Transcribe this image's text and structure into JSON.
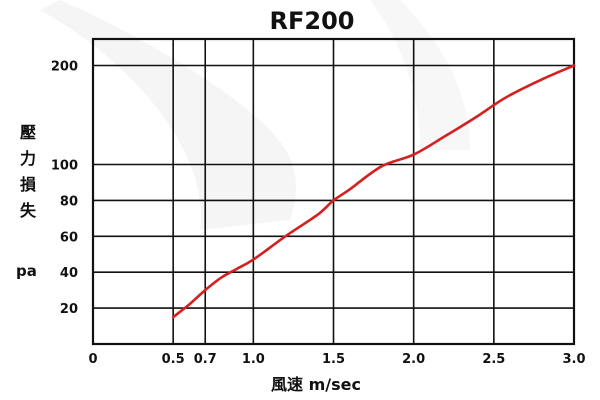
{
  "chart_data": {
    "type": "line",
    "title": "RF200",
    "xlabel": "風速 m/sec",
    "ylabel": [
      "壓",
      "力",
      "損",
      "失"
    ],
    "ylabel_unit": "pa",
    "x_ticks": [
      "0",
      "0.5",
      "0.7",
      "1.0",
      "1.5",
      "2.0",
      "2.5",
      "3.0"
    ],
    "y_ticks": [
      "20",
      "40",
      "60",
      "80",
      "100",
      "200"
    ],
    "xlim": [
      0,
      3.0
    ],
    "y_scale": "piecewise: 0–100 linear, 100–200 compressed",
    "grid": true,
    "series": [
      {
        "color": "#d42020",
        "x": [
          0.5,
          0.6,
          0.7,
          0.8,
          0.9,
          1.0,
          1.2,
          1.4,
          1.5,
          1.6,
          1.8,
          2.0,
          2.2,
          2.4,
          2.5,
          2.6,
          2.8,
          3.0
        ],
        "y": [
          15,
          22,
          30,
          37,
          42,
          47,
          60,
          72,
          80,
          86,
          99,
          110,
          129,
          149,
          160,
          170,
          186,
          200
        ]
      }
    ]
  }
}
